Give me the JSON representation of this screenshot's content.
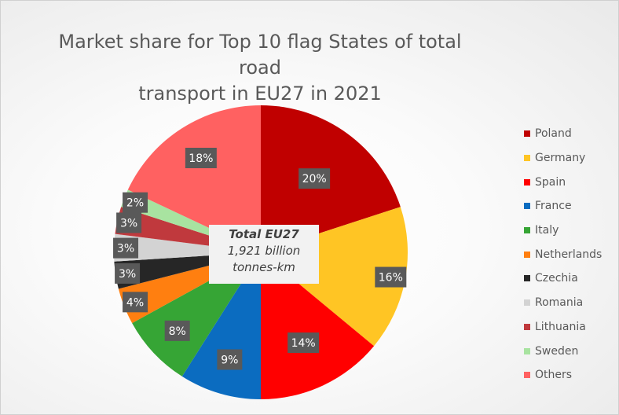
{
  "chart_data": {
    "type": "pie",
    "title": "Market share for Top 10 flag States of total road transport in EU27 in 2021",
    "title_lines": [
      "Market share for Top 10 flag States of total road",
      "transport in EU27 in 2021"
    ],
    "categories": [
      "Poland",
      "Germany",
      "Spain",
      "France",
      "Italy",
      "Netherlands",
      "Czechia",
      "Romania",
      "Lithuania",
      "Sweden",
      "Others"
    ],
    "values": [
      20,
      16,
      14,
      9,
      8,
      4,
      3,
      3,
      3,
      2,
      18
    ],
    "data_labels": [
      "20%",
      "16%",
      "14%",
      "9%",
      "8%",
      "4%",
      "3%",
      "3%",
      "3%",
      "2%",
      "18%"
    ],
    "colors": [
      "#C00000",
      "#FFC524",
      "#FF0000",
      "#0B6CC0",
      "#36A535",
      "#FF7F10",
      "#262626",
      "#D3D3D3",
      "#C0393D",
      "#A8E3A0",
      "#FF6161"
    ],
    "legend_position": "right",
    "center_annotation": {
      "line1": "Total EU27",
      "line2": "1,921 billion",
      "line3": "tonnes-km"
    }
  }
}
